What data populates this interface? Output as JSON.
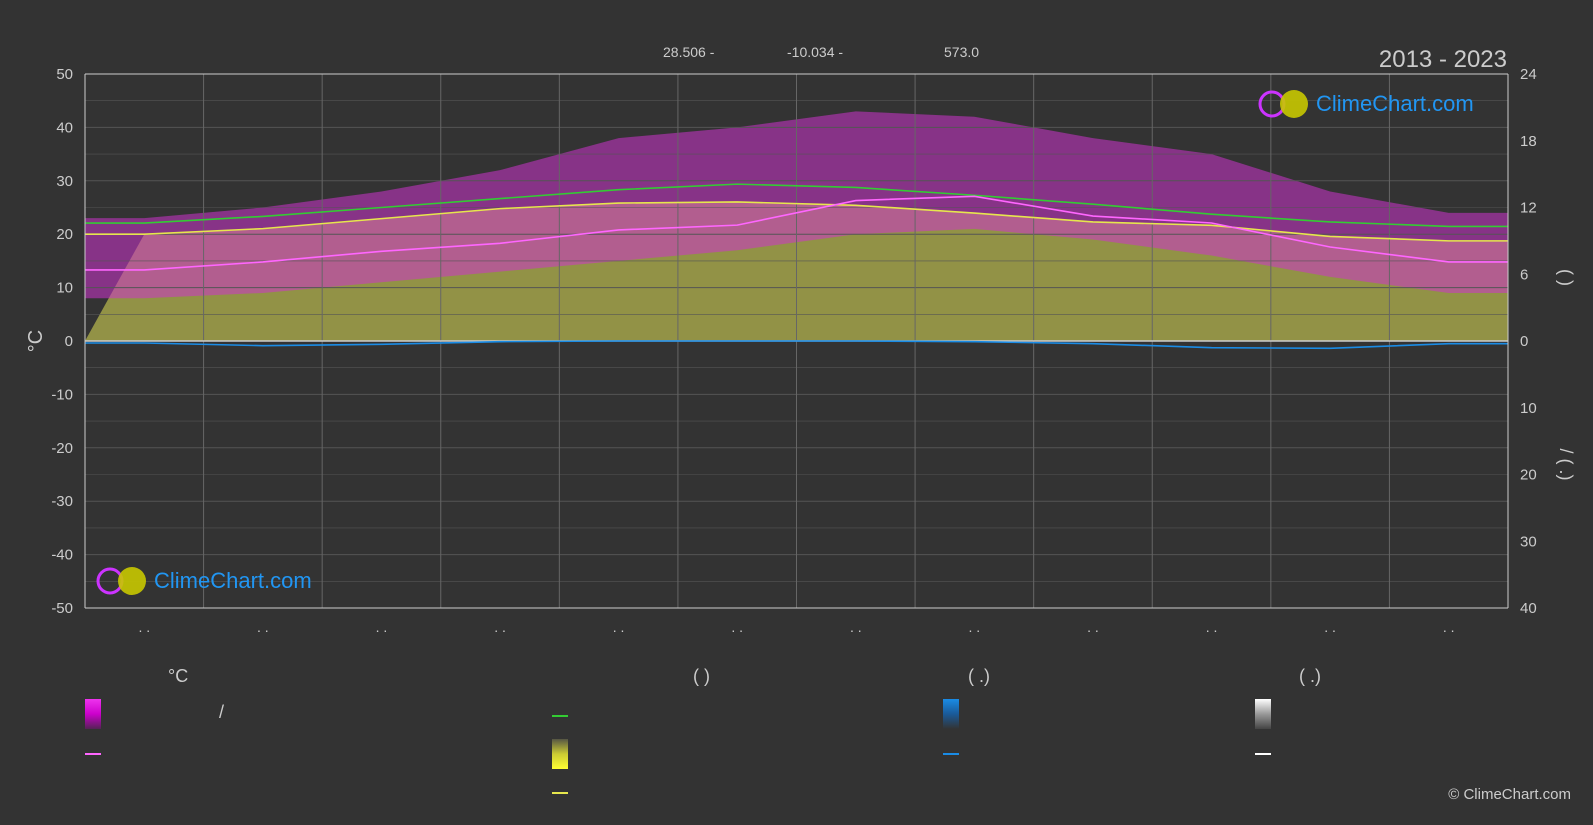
{
  "header": {
    "lat": "28.506 -",
    "lon": "-10.034 -",
    "elevation": "573.0",
    "period": "2013 - 2023"
  },
  "branding": {
    "logo_top": "ClimeChart.com",
    "logo_bottom": "ClimeChart.com",
    "copyright": "© ClimeChart.com"
  },
  "legend": {
    "temp_heading": "°C",
    "col2_heading": "(          )",
    "col3_heading": "(    .)",
    "col4_heading": "(    .)",
    "slash": "/"
  },
  "colors": {
    "background": "#333333",
    "grid": "#555555",
    "daylight": "#33cc33",
    "sunshine": "#e6e64d",
    "mean_temp": "#ff66ff",
    "precip": "#1a8ce6",
    "temp_band": "#cc33cc",
    "sun_band": "#b3b34d",
    "snow": "#ffffff"
  },
  "chart_data": {
    "type": "line",
    "x_tick_labels": [
      ". .",
      ". .",
      ". .",
      ". .",
      ". .",
      ". .",
      ". .",
      ". .",
      ". .",
      ". .",
      ". .",
      ". ."
    ],
    "ylabel_left": "°C",
    "ylabel_right_upper": "(          )",
    "ylabel_right_lower": "/     (    .)",
    "ylim_left": [
      -50,
      50
    ],
    "yticks_left": [
      50,
      40,
      30,
      20,
      10,
      0,
      -10,
      -20,
      -30,
      -40,
      -50
    ],
    "yticks_right_upper": [
      24,
      18,
      12,
      6,
      0
    ],
    "yticks_right_lower": [
      10,
      20,
      30,
      40
    ],
    "grid": true,
    "months": [
      1,
      2,
      3,
      4,
      5,
      6,
      7,
      8,
      9,
      10,
      11,
      12
    ],
    "series": [
      {
        "key": "daylight",
        "values": [
          10.6,
          11.2,
          12.0,
          12.8,
          13.6,
          14.1,
          13.8,
          13.1,
          12.3,
          11.4,
          10.7,
          10.3
        ]
      },
      {
        "key": "sunshine",
        "values": [
          9.6,
          10.1,
          11.0,
          11.9,
          12.4,
          12.5,
          12.2,
          11.5,
          10.7,
          10.4,
          9.4,
          9.0
        ]
      },
      {
        "key": "mean_temp",
        "values": [
          13.3,
          14.8,
          16.8,
          18.3,
          20.8,
          21.7,
          26.3,
          27.1,
          23.4,
          22.1,
          17.6,
          14.8
        ]
      },
      {
        "key": "precip",
        "values": [
          0.3,
          0.7,
          0.5,
          0.1,
          0.0,
          0.0,
          0.0,
          0.1,
          0.4,
          1.0,
          1.1,
          0.4
        ]
      }
    ],
    "temp_range_band": {
      "min": [
        8.0,
        9.0,
        11.0,
        13.0,
        15.0,
        17.0,
        20.0,
        21.0,
        19.0,
        16.0,
        12.0,
        9.0
      ],
      "max": [
        23.0,
        25.0,
        28.0,
        32.0,
        38.0,
        40.0,
        43.0,
        42.0,
        38.0,
        35.0,
        28.0,
        24.0
      ]
    }
  }
}
